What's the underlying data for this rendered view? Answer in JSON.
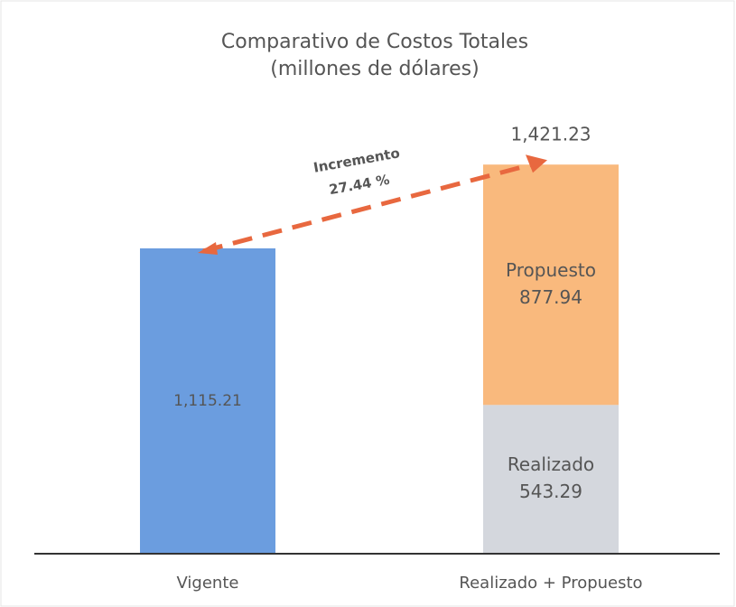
{
  "chart_data": {
    "type": "stacked-bar",
    "title": "Comparativo de Costos Totales",
    "subtitle": "(millones de dólares)",
    "categories": [
      "Vigente",
      "Realizado + Propuesto"
    ],
    "series": [
      {
        "color": "#6b9ddf",
        "values": [
          1115.21,
          null
        ],
        "value_labels": [
          "1,115.21",
          null
        ]
      },
      {
        "name": "Realizado",
        "color": "#d4d7dd",
        "values": [
          null,
          543.29
        ]
      },
      {
        "name": "Propuesto",
        "color": "#f9b97d",
        "values": [
          null,
          877.94
        ]
      }
    ],
    "total": {
      "value": 1421.23,
      "label": "1,421.23"
    },
    "annotation": [
      "Incremento",
      "27.44 %"
    ],
    "arrow_color": "#e8683f",
    "ylim": [
      0,
      1600
    ]
  }
}
